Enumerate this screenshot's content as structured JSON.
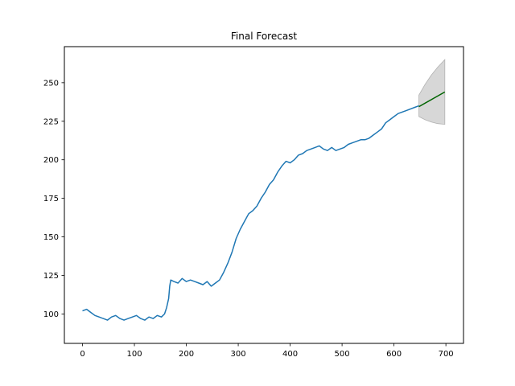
{
  "chart_data": {
    "type": "line",
    "title": "Final Forecast",
    "xlabel": "",
    "ylabel": "",
    "xlim": [
      -34.9,
      733.9
    ],
    "ylim": [
      80.9,
      273.4
    ],
    "xticks": [
      0,
      100,
      200,
      300,
      400,
      500,
      600,
      700
    ],
    "yticks": [
      100,
      125,
      150,
      175,
      200,
      225,
      250
    ],
    "grid": false,
    "legend": "none",
    "series": [
      {
        "role": "observed",
        "color": "#1f77b4",
        "x": [
          0,
          8,
          16,
          24,
          32,
          40,
          48,
          56,
          64,
          72,
          80,
          88,
          96,
          104,
          112,
          120,
          128,
          136,
          144,
          152,
          158,
          162,
          166,
          168,
          170,
          176,
          184,
          192,
          200,
          208,
          216,
          224,
          232,
          240,
          248,
          256,
          264,
          272,
          280,
          288,
          296,
          304,
          312,
          320,
          328,
          336,
          344,
          352,
          360,
          368,
          376,
          384,
          392,
          400,
          408,
          416,
          424,
          432,
          440,
          448,
          456,
          464,
          472,
          480,
          488,
          496,
          504,
          512,
          520,
          528,
          536,
          544,
          552,
          560,
          568,
          576,
          584,
          592,
          600,
          608,
          616,
          624,
          632,
          640,
          648
        ],
        "y": [
          102,
          103,
          101,
          99,
          98,
          97,
          96,
          98,
          99,
          97,
          96,
          97,
          98,
          99,
          97,
          96,
          98,
          97,
          99,
          98,
          100,
          104,
          110,
          118,
          122,
          121,
          120,
          123,
          121,
          122,
          121,
          120,
          119,
          121,
          118,
          120,
          122,
          127,
          133,
          140,
          149,
          155,
          160,
          165,
          167,
          170,
          175,
          179,
          184,
          187,
          192,
          196,
          199,
          198,
          200,
          203,
          204,
          206,
          207,
          208,
          209,
          207,
          206,
          208,
          206,
          207,
          208,
          210,
          211,
          212,
          213,
          213,
          214,
          216,
          218,
          220,
          224,
          226,
          228,
          230,
          231,
          232,
          233,
          234,
          235
        ]
      },
      {
        "role": "forecast",
        "color": "#006400",
        "x": [
          648,
          698
        ],
        "y": [
          234.5,
          244
        ]
      }
    ],
    "confidence_band": {
      "color": "#d3d3d3",
      "x": [
        648,
        660,
        672,
        684,
        698
      ],
      "upper": [
        242,
        249,
        255,
        260,
        265
      ],
      "lower": [
        228,
        226,
        224.5,
        223.5,
        223
      ]
    }
  }
}
